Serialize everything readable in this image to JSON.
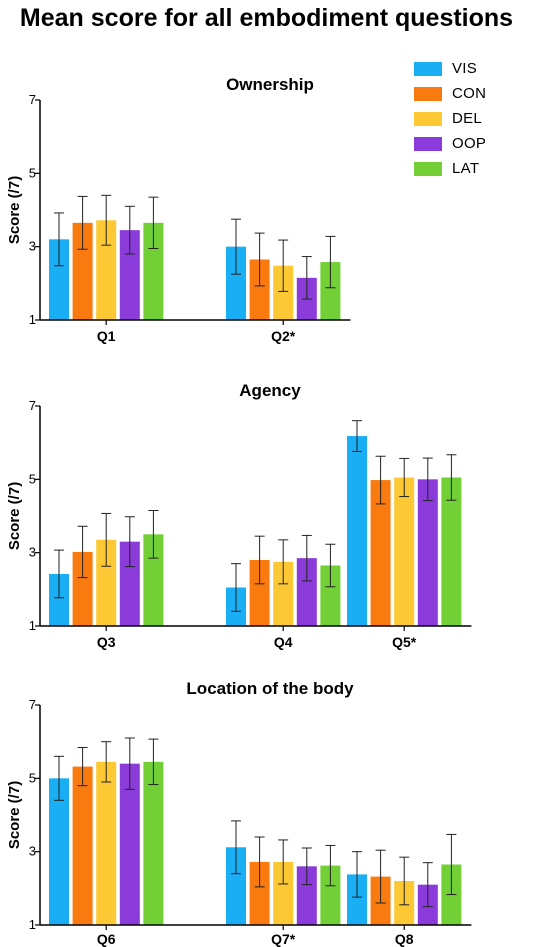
{
  "title": "Mean score for all embodiment questions",
  "legend": [
    {
      "name": "VIS",
      "color": "#1AAEF5"
    },
    {
      "name": "CON",
      "color": "#F97A0E"
    },
    {
      "name": "DEL",
      "color": "#FCC934"
    },
    {
      "name": "OOP",
      "color": "#8B3BD9"
    },
    {
      "name": "LAT",
      "color": "#72CF36"
    }
  ],
  "chart_data": [
    {
      "type": "bar",
      "title": "Ownership",
      "ylabel": "Score (/7)",
      "ylim": [
        1,
        7
      ],
      "yticks": [
        1,
        3,
        5,
        7
      ],
      "categories": [
        "Q1",
        "Q2*"
      ],
      "series": [
        {
          "name": "VIS",
          "values": [
            3.2,
            3.0
          ],
          "errors": [
            0.72,
            0.75
          ]
        },
        {
          "name": "CON",
          "values": [
            3.65,
            2.65
          ],
          "errors": [
            0.72,
            0.72
          ]
        },
        {
          "name": "DEL",
          "values": [
            3.72,
            2.48
          ],
          "errors": [
            0.68,
            0.7
          ]
        },
        {
          "name": "OOP",
          "values": [
            3.45,
            2.15
          ],
          "errors": [
            0.65,
            0.58
          ]
        },
        {
          "name": "LAT",
          "values": [
            3.65,
            2.58
          ],
          "errors": [
            0.7,
            0.7
          ]
        }
      ]
    },
    {
      "type": "bar",
      "title": "Agency",
      "ylabel": "Score (/7)",
      "ylim": [
        1,
        7
      ],
      "yticks": [
        1,
        3,
        5,
        7
      ],
      "categories": [
        "Q3",
        "Q4",
        "Q5*"
      ],
      "series": [
        {
          "name": "VIS",
          "values": [
            2.42,
            2.05,
            6.18
          ],
          "errors": [
            0.65,
            0.65,
            0.42
          ]
        },
        {
          "name": "CON",
          "values": [
            3.02,
            2.8,
            4.98
          ],
          "errors": [
            0.7,
            0.65,
            0.65
          ]
        },
        {
          "name": "DEL",
          "values": [
            3.35,
            2.75,
            5.05
          ],
          "errors": [
            0.72,
            0.6,
            0.52
          ]
        },
        {
          "name": "OOP",
          "values": [
            3.3,
            2.85,
            5.0
          ],
          "errors": [
            0.68,
            0.62,
            0.58
          ]
        },
        {
          "name": "LAT",
          "values": [
            3.5,
            2.65,
            5.05
          ],
          "errors": [
            0.65,
            0.58,
            0.62
          ]
        }
      ]
    },
    {
      "type": "bar",
      "title": "Location of the body",
      "ylabel": "Score (/7)",
      "ylim": [
        1,
        7
      ],
      "yticks": [
        1,
        3,
        5,
        7
      ],
      "categories": [
        "Q6",
        "Q7*",
        "Q8"
      ],
      "series": [
        {
          "name": "VIS",
          "values": [
            5.0,
            3.12,
            2.38
          ],
          "errors": [
            0.6,
            0.72,
            0.62
          ]
        },
        {
          "name": "CON",
          "values": [
            5.32,
            2.72,
            2.32
          ],
          "errors": [
            0.52,
            0.68,
            0.72
          ]
        },
        {
          "name": "DEL",
          "values": [
            5.45,
            2.72,
            2.2
          ],
          "errors": [
            0.55,
            0.6,
            0.65
          ]
        },
        {
          "name": "OOP",
          "values": [
            5.4,
            2.6,
            2.1
          ],
          "errors": [
            0.7,
            0.5,
            0.6
          ]
        },
        {
          "name": "LAT",
          "values": [
            5.45,
            2.62,
            2.65
          ],
          "errors": [
            0.62,
            0.55,
            0.82
          ]
        }
      ]
    }
  ]
}
